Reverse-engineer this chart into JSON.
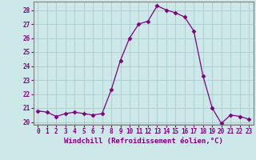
{
  "x": [
    0,
    1,
    2,
    3,
    4,
    5,
    6,
    7,
    8,
    9,
    10,
    11,
    12,
    13,
    14,
    15,
    16,
    17,
    18,
    19,
    20,
    21,
    22,
    23
  ],
  "y": [
    20.8,
    20.7,
    20.4,
    20.6,
    20.7,
    20.6,
    20.5,
    20.6,
    22.3,
    24.4,
    26.0,
    27.0,
    27.2,
    28.3,
    28.0,
    27.8,
    27.5,
    26.5,
    23.3,
    21.0,
    19.9,
    20.5,
    20.4,
    20.2
  ],
  "line_color": "#800080",
  "marker": "D",
  "marker_size": 2.5,
  "bg_color": "#cce8e8",
  "grid_color": "#aacccc",
  "xlabel": "Windchill (Refroidissement éolien,°C)",
  "ylim": [
    19.8,
    28.6
  ],
  "xlim": [
    -0.5,
    23.5
  ],
  "yticks": [
    20,
    21,
    22,
    23,
    24,
    25,
    26,
    27,
    28
  ],
  "xticks": [
    0,
    1,
    2,
    3,
    4,
    5,
    6,
    7,
    8,
    9,
    10,
    11,
    12,
    13,
    14,
    15,
    16,
    17,
    18,
    19,
    20,
    21,
    22,
    23
  ],
  "tick_color": "#800080",
  "label_color": "#800080",
  "tick_fontsize": 5.5,
  "xlabel_fontsize": 6.5,
  "spine_color": "#808080"
}
